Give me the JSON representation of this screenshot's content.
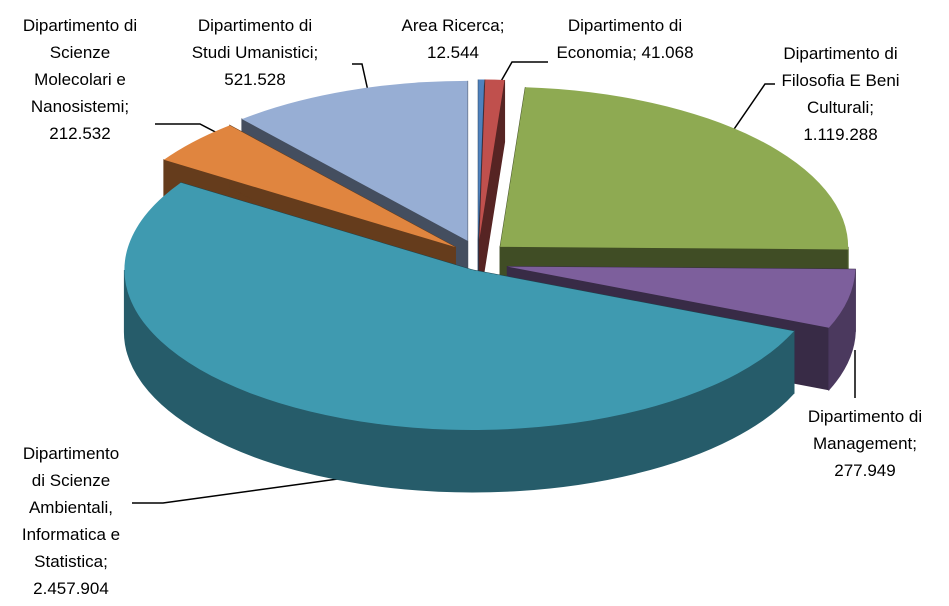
{
  "chart_data": {
    "type": "pie",
    "categories": [
      "Area Ricerca;",
      "Dipartimento di Economia;",
      "Dipartimento di Filosofia E Beni Culturali;",
      "Dipartimento di Management;",
      "Dipartimento di Scienze Ambientali, Informatica e Statistica;",
      "Dipartimento di Scienze Molecolari e Nanosistemi;",
      "Dipartimento di Studi Umanistici;"
    ],
    "values": [
      12544,
      41068,
      1119288,
      277949,
      2457904,
      212532,
      521528
    ],
    "value_labels": [
      "12.544",
      "41.068",
      "1.119.288",
      "277.949",
      "2.457.904",
      "212.532",
      "521.528"
    ],
    "colors": [
      "#4f81bd",
      "#c0504d",
      "#8eaa52",
      "#7d5f9c",
      "#3f9ab0",
      "#e0853f",
      "#97aed4"
    ],
    "style": "3d-exploded"
  }
}
